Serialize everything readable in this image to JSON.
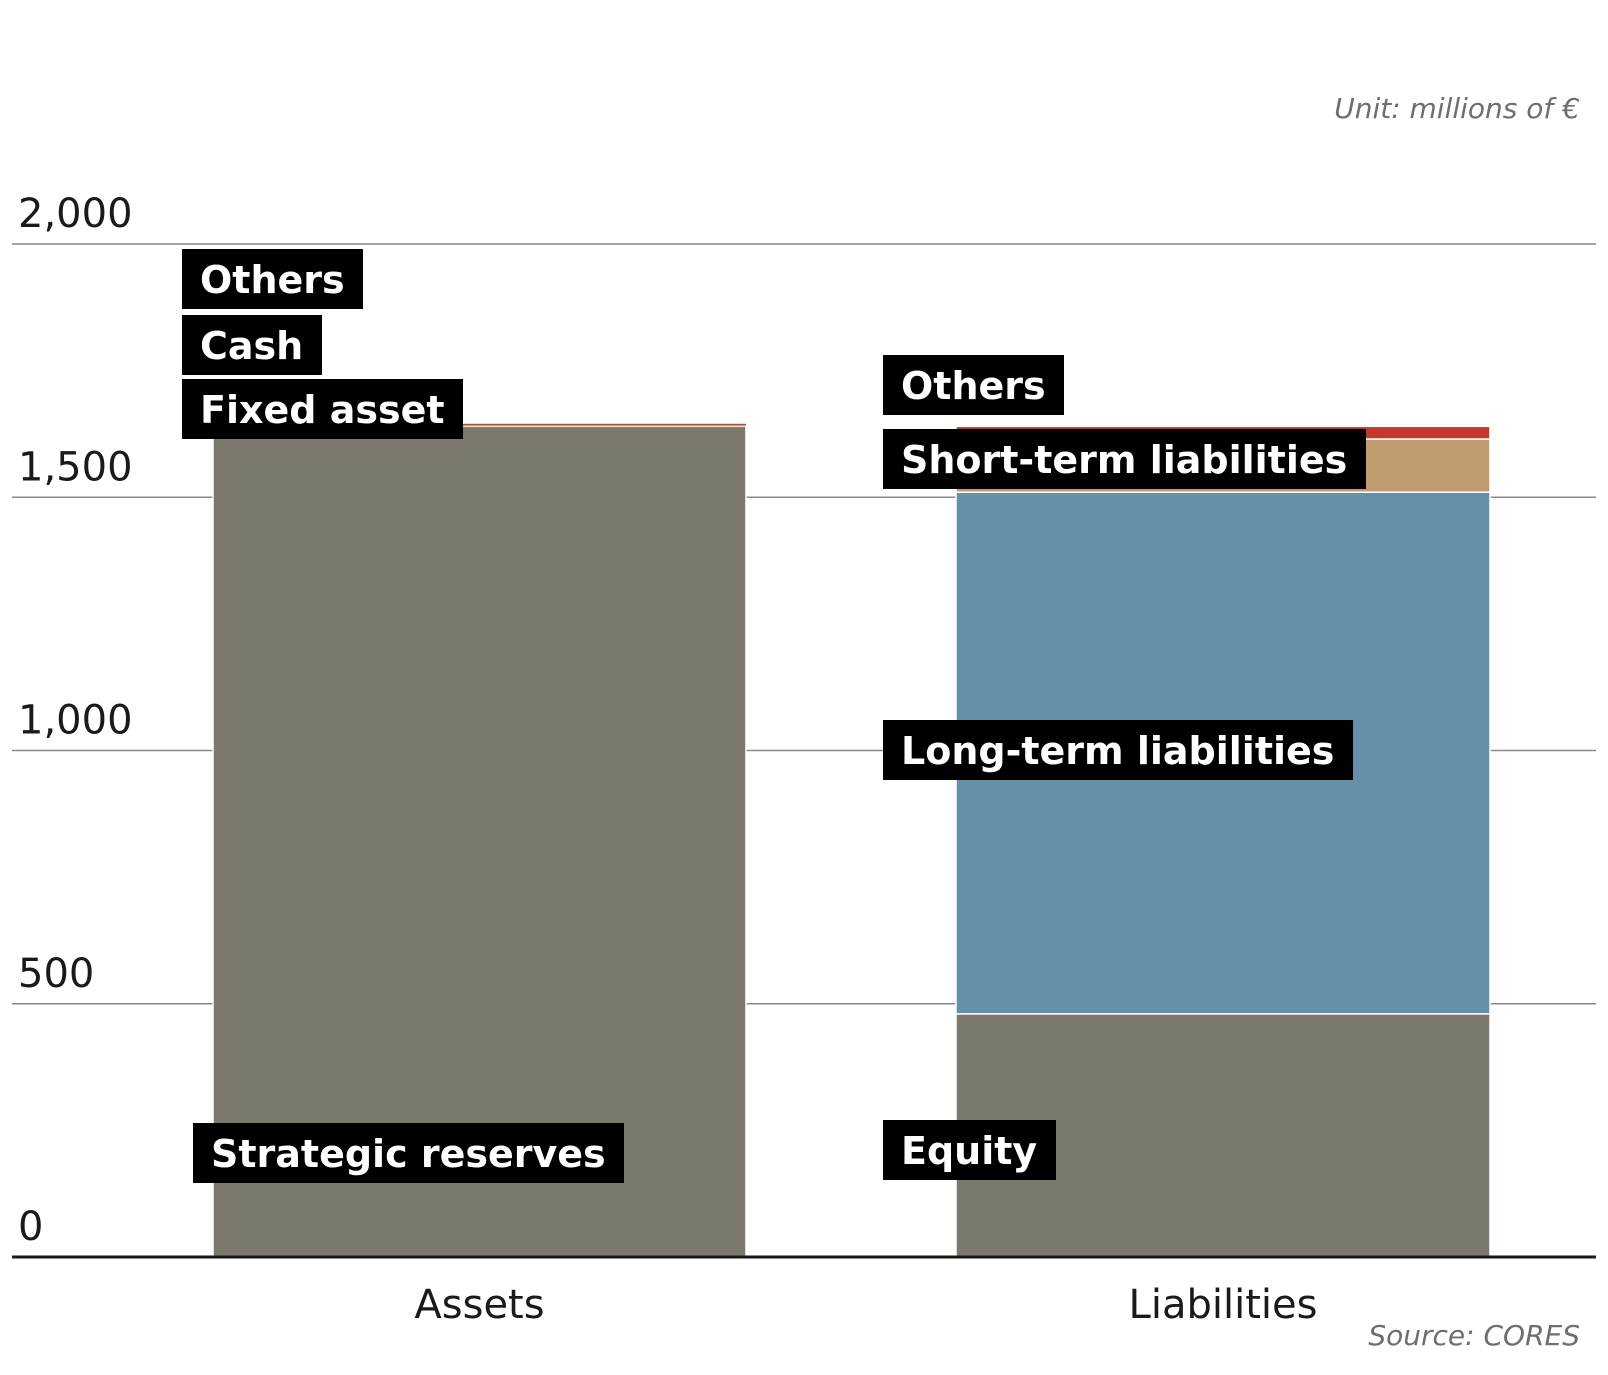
{
  "unit_note": "Unit: millions of €",
  "source_note": "Source: CORES",
  "chart_data": {
    "type": "bar",
    "stacked": true,
    "categories": [
      "Assets",
      "Liabilities"
    ],
    "ylim": [
      0,
      2000
    ],
    "yticks": [
      0,
      500,
      1000,
      1500,
      2000
    ],
    "ytick_labels": [
      "0",
      "500",
      "1,000",
      "1,500",
      "2,000"
    ],
    "grid": true,
    "stacks": [
      {
        "category": "Assets",
        "segments": [
          {
            "label": "Strategic reserves",
            "value": 1640,
            "color": "#7b796b"
          },
          {
            "label": "Fixed asset",
            "value": 2,
            "color": "#bf9b6f"
          },
          {
            "label": "Cash",
            "value": 1,
            "color": "#c48a6a"
          },
          {
            "label": "Others",
            "value": 2,
            "color": "#c0392b"
          }
        ]
      },
      {
        "category": "Liabilities",
        "segments": [
          {
            "label": "Equity",
            "value": 480,
            "color": "#7b796b"
          },
          {
            "label": "Long-term liabilities",
            "value": 1030,
            "color": "#6490a8"
          },
          {
            "label": "Short-term liabilities",
            "value": 105,
            "color": "#bf9b6f"
          },
          {
            "label": "Others",
            "value": 25,
            "color": "#c0392b"
          }
        ]
      }
    ]
  }
}
